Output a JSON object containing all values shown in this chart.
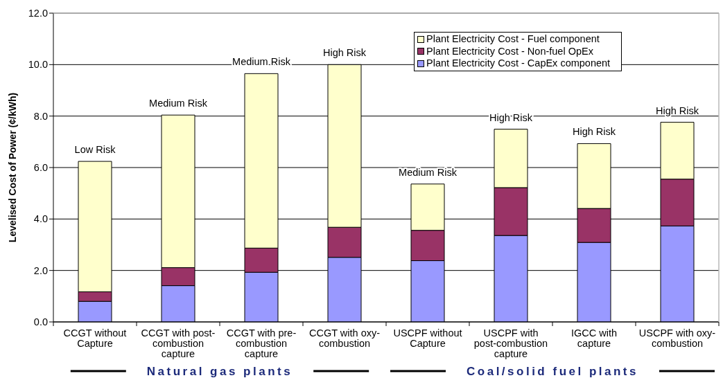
{
  "chart_data": {
    "type": "bar",
    "stacked": true,
    "ylabel": "Levelised Cost of Power (¢/kWh)",
    "categories": [
      "CCGT without Capture",
      "CCGT with post-combustion capture",
      "CCGT with pre-combustion capture",
      "CCGT with oxy-combustion",
      "USCPF without Capture",
      "USCPF with post-combustion capture",
      "IGCC with capture",
      "USCPF with oxy-combustion"
    ],
    "series": [
      {
        "name": "Plant Electricity Cost - CapEx component",
        "color": "#9999ff",
        "values": [
          0.8,
          1.41,
          1.93,
          2.51,
          2.38,
          3.36,
          3.09,
          3.73
        ]
      },
      {
        "name": "Plant Electricity Cost - Non-fuel OpEx",
        "color": "#993366",
        "values": [
          0.37,
          0.7,
          0.94,
          1.17,
          1.18,
          1.86,
          1.32,
          1.82
        ]
      },
      {
        "name": "Plant Electricity Cost - Fuel component",
        "color": "#ffffcc",
        "values": [
          5.07,
          5.93,
          6.78,
          6.32,
          1.8,
          2.27,
          2.52,
          2.21
        ]
      }
    ],
    "ylim": [
      0,
      12
    ],
    "yticks": [
      {
        "value": 0,
        "label": "0.0"
      },
      {
        "value": 2,
        "label": "2.0"
      },
      {
        "value": 4,
        "label": "4.0"
      },
      {
        "value": 6,
        "label": "6.0"
      },
      {
        "value": 8,
        "label": "8.0"
      },
      {
        "value": 10,
        "label": "10.0"
      },
      {
        "value": 12,
        "label": "12.0"
      }
    ],
    "grid": "y",
    "legend": "top right",
    "annotations": [
      {
        "text": "Low Risk",
        "x": "CCGT without Capture",
        "y": 6.24
      },
      {
        "text": "Medium Risk",
        "x": "CCGT with post-combustion capture",
        "y": 8.04
      },
      {
        "text": "Medium Risk",
        "x": "CCGT with pre-combustion capture",
        "y": 9.65
      },
      {
        "text": "High Risk",
        "x": "CCGT with oxy-combustion",
        "y": 10.0
      },
      {
        "text": "Medium Risk",
        "x": "USCPF without Capture",
        "y": 5.36
      },
      {
        "text": "High Risk",
        "x": "USCPF with post-combustion capture",
        "y": 7.49
      },
      {
        "text": "High Risk",
        "x": "IGCC with capture",
        "y": 6.93
      },
      {
        "text": "High Risk",
        "x": "USCPF with oxy-combustion",
        "y": 7.76
      },
      "Natural gas plants",
      "Coal/solid fuel plants"
    ]
  }
}
